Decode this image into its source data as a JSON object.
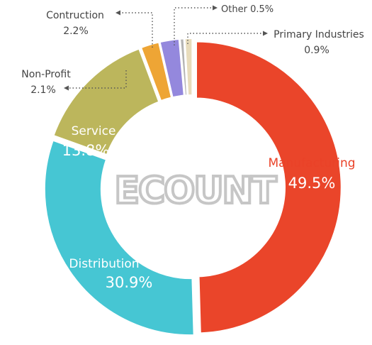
{
  "chart_data": {
    "type": "pie",
    "variant": "donut",
    "title": "",
    "slices": [
      {
        "label": "Manufacturing",
        "value": 49.5,
        "display": "49.5%",
        "color": "#ea452a"
      },
      {
        "label": "Distribution",
        "value": 30.9,
        "display": "30.9%",
        "color": "#46c6d3"
      },
      {
        "label": "Service",
        "value": 13.8,
        "display": "13.8%",
        "color": "#bcb65c"
      },
      {
        "label": "Non-Profit",
        "value": 2.1,
        "display": "2.1%",
        "color": "#eea535"
      },
      {
        "label": "Contruction",
        "value": 2.2,
        "display": "2.2%",
        "color": "#9488dd"
      },
      {
        "label": "Other",
        "value": 0.5,
        "display": "0.5%",
        "color": "#b4b4b4"
      },
      {
        "label": "Primary Industries",
        "value": 0.9,
        "display": "0.9%",
        "color": "#e8dcbc"
      }
    ]
  },
  "logo": {
    "text": "ECOUNT",
    "color": "#c6c6c6"
  }
}
